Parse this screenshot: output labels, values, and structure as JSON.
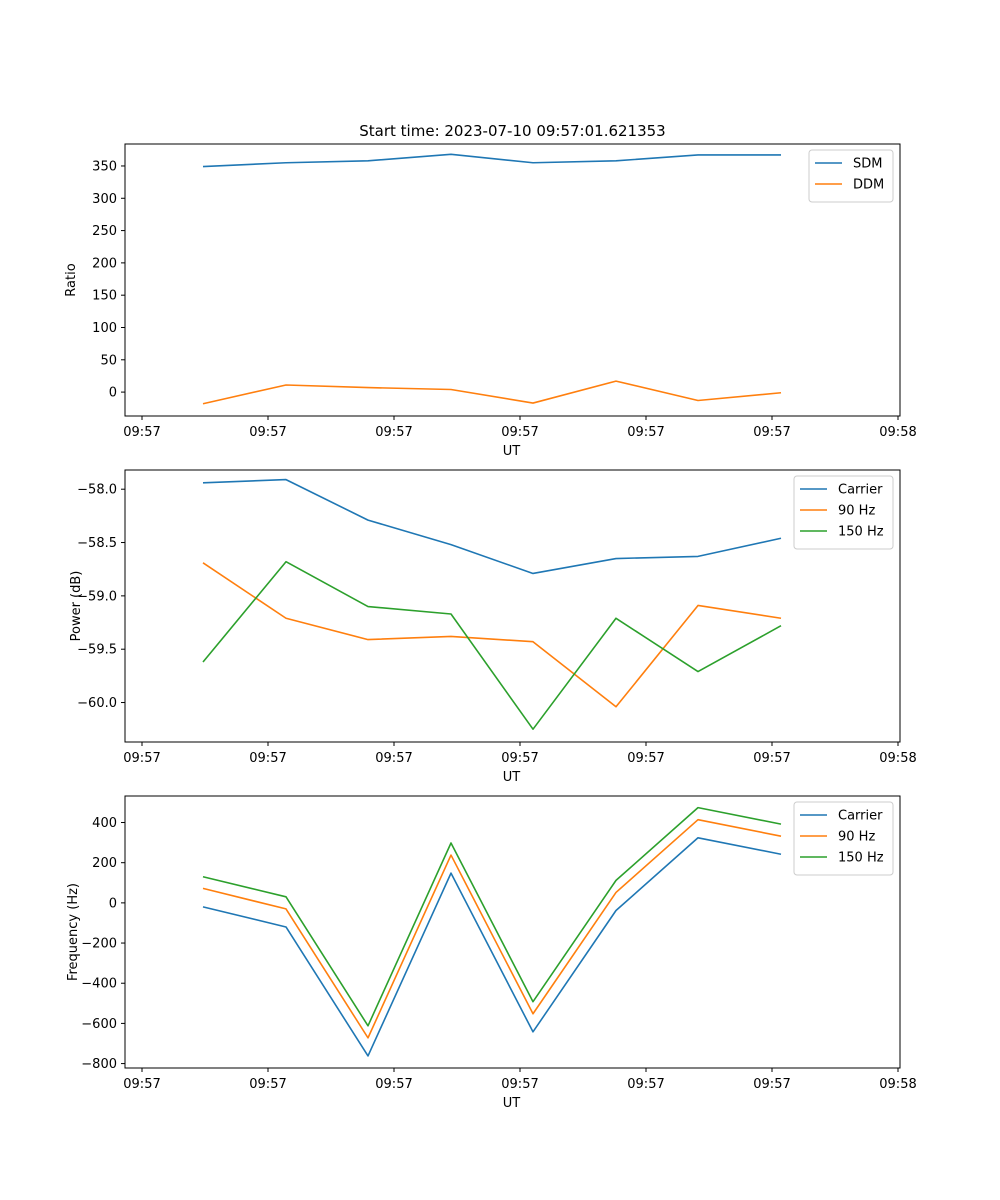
{
  "chart_data": [
    {
      "type": "line",
      "title": "Start time: 2023-07-10 09:57:01.621353",
      "xlabel": "UT",
      "ylabel": "Ratio",
      "x_tick_labels": [
        "09:57",
        "09:57",
        "09:57",
        "09:57",
        "09:57",
        "09:57",
        "09:58"
      ],
      "ylim": [
        -37,
        384
      ],
      "yticks": [
        0,
        50,
        100,
        150,
        200,
        250,
        300,
        350
      ],
      "ytick_labels": [
        "0",
        "50",
        "100",
        "150",
        "200",
        "250",
        "300",
        "350"
      ],
      "legend": "top-right",
      "series": [
        {
          "name": "SDM",
          "color": "#1f77b4",
          "values": [
            349,
            355,
            358,
            368,
            355,
            358,
            367,
            367
          ]
        },
        {
          "name": "DDM",
          "color": "#ff7f0e",
          "values": [
            -18,
            11,
            7,
            4,
            -17,
            17,
            -13,
            -1
          ]
        }
      ]
    },
    {
      "type": "line",
      "title": "",
      "xlabel": "UT",
      "ylabel": "Power (dB)",
      "x_tick_labels": [
        "09:57",
        "09:57",
        "09:57",
        "09:57",
        "09:57",
        "09:57",
        "09:58"
      ],
      "ylim": [
        -60.37,
        -57.82
      ],
      "yticks": [
        -60.0,
        -59.5,
        -59.0,
        -58.5,
        -58.0
      ],
      "ytick_labels": [
        "−60.0",
        "−59.5",
        "−59.0",
        "−58.5",
        "−58.0"
      ],
      "legend": "top-right",
      "series": [
        {
          "name": "Carrier",
          "color": "#1f77b4",
          "values": [
            -57.94,
            -57.91,
            -58.29,
            -58.52,
            -58.79,
            -58.65,
            -58.63,
            -58.46
          ]
        },
        {
          "name": "90 Hz",
          "color": "#ff7f0e",
          "values": [
            -58.69,
            -59.21,
            -59.41,
            -59.38,
            -59.43,
            -60.04,
            -59.09,
            -59.21
          ]
        },
        {
          "name": "150 Hz",
          "color": "#2ca02c",
          "values": [
            -59.62,
            -58.68,
            -59.1,
            -59.17,
            -60.25,
            -59.21,
            -59.71,
            -59.28
          ]
        }
      ]
    },
    {
      "type": "line",
      "title": "",
      "xlabel": "UT",
      "ylabel": "Frequency (Hz)",
      "x_tick_labels": [
        "09:57",
        "09:57",
        "09:57",
        "09:57",
        "09:57",
        "09:57",
        "09:58"
      ],
      "ylim": [
        -822,
        532
      ],
      "yticks": [
        -800,
        -600,
        -400,
        -200,
        0,
        200,
        400
      ],
      "ytick_labels": [
        "−800",
        "−600",
        "−400",
        "−200",
        "0",
        "200",
        "400"
      ],
      "legend": "top-right",
      "series": [
        {
          "name": "Carrier",
          "color": "#1f77b4",
          "values": [
            -20,
            -120,
            -762,
            148,
            -642,
            -38,
            324,
            242
          ]
        },
        {
          "name": "90 Hz",
          "color": "#ff7f0e",
          "values": [
            72,
            -30,
            -672,
            238,
            -552,
            52,
            414,
            332
          ]
        },
        {
          "name": "150 Hz",
          "color": "#2ca02c",
          "values": [
            130,
            30,
            -612,
            298,
            -492,
            112,
            474,
            392
          ]
        }
      ]
    }
  ]
}
